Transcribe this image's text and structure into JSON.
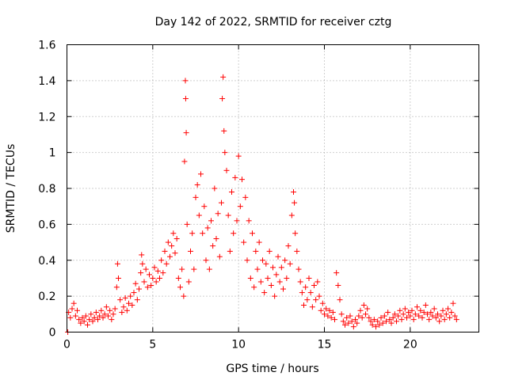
{
  "chart_data": {
    "type": "scatter",
    "title": "Day 142 of 2022, SRMTID for receiver cztg",
    "xlabel": "GPS time / hours",
    "ylabel": "SRMTID / TECUs",
    "xlim": [
      0,
      24
    ],
    "ylim": [
      0,
      1.6
    ],
    "xticks": [
      0,
      5,
      10,
      15,
      20
    ],
    "xtick_labels": [
      "0",
      "5",
      "10",
      "15",
      "20"
    ],
    "yticks": [
      0,
      0.2,
      0.4,
      0.6,
      0.8,
      1.0,
      1.2,
      1.4,
      1.6
    ],
    "ytick_labels": [
      "0",
      "0.2",
      "0.4",
      "0.6",
      "0.8",
      "1",
      "1.2",
      "1.4",
      "1.6"
    ],
    "grid": true,
    "marker": "plus",
    "series": [
      {
        "name": "SRMTID",
        "color": "#ff0000",
        "points": [
          [
            0.05,
            0.0
          ],
          [
            0.1,
            0.11
          ],
          [
            0.2,
            0.08
          ],
          [
            0.3,
            0.13
          ],
          [
            0.4,
            0.16
          ],
          [
            0.5,
            0.09
          ],
          [
            0.6,
            0.12
          ],
          [
            0.7,
            0.07
          ],
          [
            0.8,
            0.05
          ],
          [
            0.9,
            0.08
          ],
          [
            1.0,
            0.06
          ],
          [
            1.1,
            0.09
          ],
          [
            1.2,
            0.04
          ],
          [
            1.3,
            0.07
          ],
          [
            1.4,
            0.1
          ],
          [
            1.5,
            0.06
          ],
          [
            1.6,
            0.08
          ],
          [
            1.7,
            0.11
          ],
          [
            1.8,
            0.07
          ],
          [
            1.9,
            0.09
          ],
          [
            2.0,
            0.12
          ],
          [
            2.1,
            0.08
          ],
          [
            2.2,
            0.1
          ],
          [
            2.3,
            0.14
          ],
          [
            2.4,
            0.09
          ],
          [
            2.5,
            0.12
          ],
          [
            2.6,
            0.07
          ],
          [
            2.7,
            0.1
          ],
          [
            2.8,
            0.13
          ],
          [
            2.9,
            0.25
          ],
          [
            2.95,
            0.38
          ],
          [
            3.0,
            0.3
          ],
          [
            3.1,
            0.18
          ],
          [
            3.2,
            0.11
          ],
          [
            3.3,
            0.14
          ],
          [
            3.4,
            0.19
          ],
          [
            3.5,
            0.12
          ],
          [
            3.6,
            0.16
          ],
          [
            3.7,
            0.2
          ],
          [
            3.8,
            0.15
          ],
          [
            3.9,
            0.22
          ],
          [
            4.0,
            0.27
          ],
          [
            4.1,
            0.18
          ],
          [
            4.2,
            0.24
          ],
          [
            4.3,
            0.33
          ],
          [
            4.35,
            0.43
          ],
          [
            4.4,
            0.38
          ],
          [
            4.5,
            0.28
          ],
          [
            4.6,
            0.35
          ],
          [
            4.7,
            0.25
          ],
          [
            4.8,
            0.32
          ],
          [
            4.9,
            0.26
          ],
          [
            5.0,
            0.3
          ],
          [
            5.1,
            0.36
          ],
          [
            5.2,
            0.28
          ],
          [
            5.3,
            0.34
          ],
          [
            5.4,
            0.3
          ],
          [
            5.5,
            0.4
          ],
          [
            5.6,
            0.33
          ],
          [
            5.7,
            0.45
          ],
          [
            5.8,
            0.38
          ],
          [
            5.9,
            0.5
          ],
          [
            6.0,
            0.42
          ],
          [
            6.1,
            0.48
          ],
          [
            6.2,
            0.55
          ],
          [
            6.3,
            0.44
          ],
          [
            6.4,
            0.52
          ],
          [
            6.5,
            0.3
          ],
          [
            6.6,
            0.25
          ],
          [
            6.7,
            0.35
          ],
          [
            6.8,
            0.2
          ],
          [
            6.85,
            0.95
          ],
          [
            6.9,
            1.4
          ],
          [
            6.92,
            1.3
          ],
          [
            6.95,
            1.11
          ],
          [
            7.0,
            0.6
          ],
          [
            7.1,
            0.28
          ],
          [
            7.2,
            0.45
          ],
          [
            7.3,
            0.55
          ],
          [
            7.4,
            0.35
          ],
          [
            7.5,
            0.75
          ],
          [
            7.6,
            0.82
          ],
          [
            7.7,
            0.65
          ],
          [
            7.8,
            0.88
          ],
          [
            7.9,
            0.55
          ],
          [
            8.0,
            0.7
          ],
          [
            8.1,
            0.4
          ],
          [
            8.2,
            0.58
          ],
          [
            8.3,
            0.35
          ],
          [
            8.4,
            0.62
          ],
          [
            8.5,
            0.48
          ],
          [
            8.6,
            0.8
          ],
          [
            8.7,
            0.52
          ],
          [
            8.8,
            0.66
          ],
          [
            8.9,
            0.42
          ],
          [
            9.0,
            0.72
          ],
          [
            9.05,
            1.3
          ],
          [
            9.1,
            1.42
          ],
          [
            9.15,
            1.12
          ],
          [
            9.2,
            1.0
          ],
          [
            9.3,
            0.9
          ],
          [
            9.4,
            0.65
          ],
          [
            9.5,
            0.45
          ],
          [
            9.6,
            0.78
          ],
          [
            9.7,
            0.55
          ],
          [
            9.8,
            0.86
          ],
          [
            9.9,
            0.62
          ],
          [
            10.0,
            0.98
          ],
          [
            10.1,
            0.7
          ],
          [
            10.2,
            0.85
          ],
          [
            10.3,
            0.5
          ],
          [
            10.4,
            0.75
          ],
          [
            10.5,
            0.4
          ],
          [
            10.6,
            0.62
          ],
          [
            10.7,
            0.3
          ],
          [
            10.8,
            0.55
          ],
          [
            10.9,
            0.25
          ],
          [
            11.0,
            0.45
          ],
          [
            11.1,
            0.35
          ],
          [
            11.2,
            0.5
          ],
          [
            11.3,
            0.28
          ],
          [
            11.4,
            0.4
          ],
          [
            11.5,
            0.22
          ],
          [
            11.6,
            0.38
          ],
          [
            11.7,
            0.3
          ],
          [
            11.8,
            0.45
          ],
          [
            11.9,
            0.26
          ],
          [
            12.0,
            0.36
          ],
          [
            12.1,
            0.2
          ],
          [
            12.2,
            0.32
          ],
          [
            12.3,
            0.42
          ],
          [
            12.4,
            0.28
          ],
          [
            12.5,
            0.36
          ],
          [
            12.6,
            0.24
          ],
          [
            12.7,
            0.4
          ],
          [
            12.8,
            0.3
          ],
          [
            12.9,
            0.48
          ],
          [
            13.0,
            0.38
          ],
          [
            13.1,
            0.65
          ],
          [
            13.2,
            0.78
          ],
          [
            13.25,
            0.72
          ],
          [
            13.3,
            0.55
          ],
          [
            13.4,
            0.45
          ],
          [
            13.5,
            0.35
          ],
          [
            13.6,
            0.28
          ],
          [
            13.7,
            0.22
          ],
          [
            13.8,
            0.15
          ],
          [
            13.9,
            0.25
          ],
          [
            14.0,
            0.18
          ],
          [
            14.1,
            0.3
          ],
          [
            14.2,
            0.22
          ],
          [
            14.3,
            0.14
          ],
          [
            14.4,
            0.26
          ],
          [
            14.5,
            0.18
          ],
          [
            14.6,
            0.28
          ],
          [
            14.7,
            0.2
          ],
          [
            14.8,
            0.12
          ],
          [
            14.9,
            0.16
          ],
          [
            15.0,
            0.1
          ],
          [
            15.1,
            0.13
          ],
          [
            15.2,
            0.09
          ],
          [
            15.3,
            0.12
          ],
          [
            15.4,
            0.08
          ],
          [
            15.5,
            0.11
          ],
          [
            15.6,
            0.07
          ],
          [
            15.7,
            0.33
          ],
          [
            15.8,
            0.26
          ],
          [
            15.9,
            0.18
          ],
          [
            16.0,
            0.1
          ],
          [
            16.1,
            0.06
          ],
          [
            16.2,
            0.04
          ],
          [
            16.3,
            0.08
          ],
          [
            16.4,
            0.05
          ],
          [
            16.5,
            0.09
          ],
          [
            16.6,
            0.06
          ],
          [
            16.7,
            0.03
          ],
          [
            16.8,
            0.07
          ],
          [
            16.9,
            0.05
          ],
          [
            17.0,
            0.09
          ],
          [
            17.1,
            0.12
          ],
          [
            17.2,
            0.08
          ],
          [
            17.3,
            0.15
          ],
          [
            17.4,
            0.1
          ],
          [
            17.5,
            0.13
          ],
          [
            17.6,
            0.08
          ],
          [
            17.7,
            0.06
          ],
          [
            17.8,
            0.04
          ],
          [
            17.9,
            0.07
          ],
          [
            18.0,
            0.03
          ],
          [
            18.1,
            0.06
          ],
          [
            18.2,
            0.04
          ],
          [
            18.3,
            0.08
          ],
          [
            18.4,
            0.05
          ],
          [
            18.5,
            0.09
          ],
          [
            18.6,
            0.06
          ],
          [
            18.7,
            0.11
          ],
          [
            18.8,
            0.07
          ],
          [
            18.9,
            0.05
          ],
          [
            19.0,
            0.08
          ],
          [
            19.1,
            0.1
          ],
          [
            19.2,
            0.06
          ],
          [
            19.3,
            0.09
          ],
          [
            19.4,
            0.12
          ],
          [
            19.5,
            0.07
          ],
          [
            19.6,
            0.1
          ],
          [
            19.7,
            0.13
          ],
          [
            19.8,
            0.08
          ],
          [
            19.9,
            0.11
          ],
          [
            20.0,
            0.09
          ],
          [
            20.1,
            0.12
          ],
          [
            20.2,
            0.07
          ],
          [
            20.3,
            0.1
          ],
          [
            20.4,
            0.14
          ],
          [
            20.5,
            0.09
          ],
          [
            20.6,
            0.12
          ],
          [
            20.7,
            0.08
          ],
          [
            20.8,
            0.11
          ],
          [
            20.9,
            0.15
          ],
          [
            21.0,
            0.1
          ],
          [
            21.1,
            0.07
          ],
          [
            21.2,
            0.11
          ],
          [
            21.3,
            0.09
          ],
          [
            21.4,
            0.13
          ],
          [
            21.5,
            0.08
          ],
          [
            21.6,
            0.1
          ],
          [
            21.7,
            0.06
          ],
          [
            21.8,
            0.09
          ],
          [
            21.9,
            0.12
          ],
          [
            22.0,
            0.07
          ],
          [
            22.1,
            0.1
          ],
          [
            22.2,
            0.13
          ],
          [
            22.3,
            0.08
          ],
          [
            22.4,
            0.11
          ],
          [
            22.5,
            0.16
          ],
          [
            22.6,
            0.09
          ],
          [
            22.7,
            0.07
          ]
        ]
      }
    ]
  }
}
